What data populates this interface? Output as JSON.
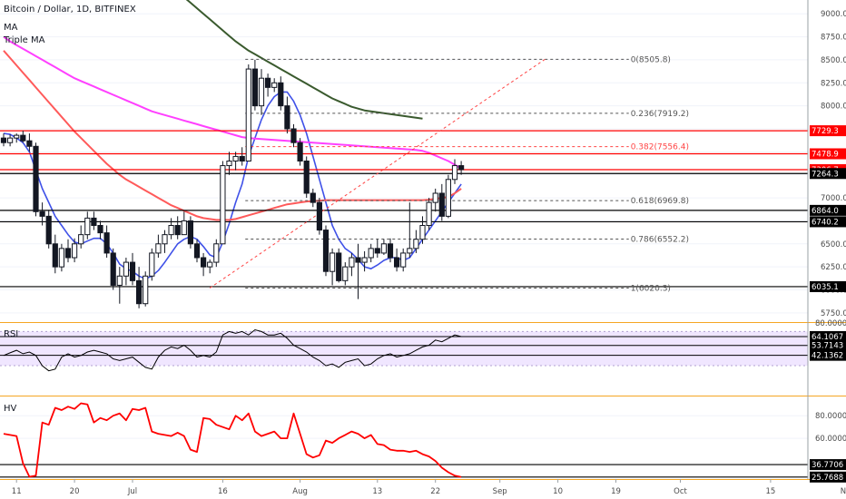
{
  "header": {
    "symbol": "Bitcoin / Dollar, 1D, BITFINEX",
    "studies": [
      "MA",
      "Triple MA"
    ]
  },
  "colors": {
    "up_candle": "#ffffff",
    "down_candle": "#131722",
    "rsi_band": "#e9dcff",
    "hv_line": "#ff0000",
    "ma_fast": "#3f51e8",
    "ma_mid": "#ff5a5a",
    "ma_pink": "#ff40ff",
    "ma_slow": "#3a5a2e",
    "hline_red": "#ff0000",
    "hline_black": "#000000",
    "fib_dash": "#555555",
    "trend_dash": "#ff4444"
  },
  "chart_data": [
    {
      "type": "candlestick",
      "title": "Bitcoin / Dollar, 1D, BITFINEX",
      "ylim": [
        5650,
        9150
      ],
      "y_ticks": [
        5750,
        6000,
        6250,
        6500,
        6750,
        7000,
        7250,
        7500,
        7750,
        8000,
        8250,
        8500,
        8750,
        9000
      ],
      "y_tick_labels": [
        "5750.0",
        "6000.0",
        "6250.0",
        "6500.0",
        "6750.0",
        "7000.0",
        "7250.0",
        "7500.0",
        "7750.0",
        "8000.0",
        "8250.0",
        "8500.0",
        "8750.0",
        "9000.0"
      ],
      "x_ticks": [
        "11",
        "20",
        "Jul",
        "16",
        "Aug",
        "13",
        "22",
        "Sep",
        "10",
        "19",
        "Oct",
        "15",
        "Nov"
      ],
      "x_tick_index": [
        2,
        11,
        20,
        34,
        46,
        58,
        67,
        77,
        86,
        95,
        105,
        119,
        131
      ],
      "ohlc": [
        [
          7650,
          7700,
          7560,
          7600
        ],
        [
          7600,
          7690,
          7560,
          7650
        ],
        [
          7650,
          7700,
          7600,
          7680
        ],
        [
          7680,
          7730,
          7600,
          7620
        ],
        [
          7620,
          7700,
          7500,
          7560
        ],
        [
          7560,
          7600,
          6800,
          6850
        ],
        [
          6850,
          6950,
          6700,
          6800
        ],
        [
          6800,
          6870,
          6450,
          6500
        ],
        [
          6500,
          6600,
          6180,
          6250
        ],
        [
          6250,
          6500,
          6200,
          6450
        ],
        [
          6450,
          6550,
          6300,
          6350
        ],
        [
          6350,
          6560,
          6300,
          6500
        ],
        [
          6500,
          6700,
          6450,
          6600
        ],
        [
          6600,
          6850,
          6550,
          6780
        ],
        [
          6780,
          6850,
          6650,
          6700
        ],
        [
          6700,
          6750,
          6550,
          6620
        ],
        [
          6620,
          6700,
          6350,
          6400
        ],
        [
          6400,
          6450,
          6000,
          6050
        ],
        [
          6050,
          6250,
          5850,
          6150
        ],
        [
          6150,
          6350,
          6050,
          6300
        ],
        [
          6300,
          6400,
          6050,
          6100
        ],
        [
          6100,
          6250,
          5800,
          5850
        ],
        [
          5850,
          6200,
          5820,
          6150
        ],
        [
          6150,
          6450,
          6100,
          6400
        ],
        [
          6400,
          6600,
          6350,
          6500
        ],
        [
          6500,
          6650,
          6400,
          6600
        ],
        [
          6600,
          6780,
          6550,
          6700
        ],
        [
          6700,
          6800,
          6550,
          6600
        ],
        [
          6600,
          6850,
          6600,
          6750
        ],
        [
          6750,
          6800,
          6450,
          6500
        ],
        [
          6500,
          6550,
          6300,
          6350
        ],
        [
          6350,
          6400,
          6150,
          6250
        ],
        [
          6250,
          6330,
          6180,
          6300
        ],
        [
          6300,
          6550,
          6250,
          6500
        ],
        [
          6500,
          7400,
          6500,
          7350
        ],
        [
          7350,
          7500,
          7250,
          7400
        ],
        [
          7400,
          7500,
          7300,
          7450
        ],
        [
          7450,
          7550,
          7350,
          7400
        ],
        [
          7400,
          8450,
          7400,
          8400
        ],
        [
          8400,
          8500,
          7950,
          8000
        ],
        [
          8000,
          8400,
          7900,
          8300
        ],
        [
          8300,
          8350,
          8100,
          8200
        ],
        [
          8200,
          8300,
          8150,
          8250
        ],
        [
          8250,
          8320,
          7950,
          8000
        ],
        [
          8000,
          8100,
          7700,
          7750
        ],
        [
          7750,
          7800,
          7550,
          7600
        ],
        [
          7600,
          7650,
          7350,
          7400
        ],
        [
          7400,
          7450,
          7000,
          7050
        ],
        [
          7050,
          7100,
          6900,
          6950
        ],
        [
          6950,
          7000,
          6600,
          6650
        ],
        [
          6650,
          6700,
          6150,
          6200
        ],
        [
          6200,
          6450,
          6050,
          6400
        ],
        [
          6400,
          6450,
          6080,
          6100
        ],
        [
          6100,
          6300,
          6050,
          6250
        ],
        [
          6250,
          6400,
          6150,
          6350
        ],
        [
          6350,
          6500,
          5900,
          6300
        ],
        [
          6300,
          6420,
          6200,
          6350
        ],
        [
          6350,
          6500,
          6300,
          6450
        ],
        [
          6450,
          6550,
          6350,
          6400
        ],
        [
          6400,
          6550,
          6380,
          6500
        ],
        [
          6500,
          6560,
          6300,
          6350
        ],
        [
          6350,
          6450,
          6200,
          6250
        ],
        [
          6250,
          6450,
          6200,
          6400
        ],
        [
          6400,
          6950,
          6350,
          6450
        ],
        [
          6450,
          6650,
          6400,
          6550
        ],
        [
          6550,
          6800,
          6500,
          6700
        ],
        [
          6700,
          7000,
          6650,
          6950
        ],
        [
          6950,
          7100,
          6850,
          7050
        ],
        [
          7050,
          7150,
          6750,
          6800
        ],
        [
          6800,
          7250,
          6780,
          7200
        ],
        [
          7200,
          7420,
          7150,
          7350
        ],
        [
          7350,
          7400,
          7250,
          7306.7
        ]
      ],
      "overlays": [
        {
          "name": "MA",
          "color": "#3f51e8",
          "values": [
            7700,
            7690,
            7650,
            7600,
            7500,
            7300,
            7100,
            6950,
            6800,
            6700,
            6600,
            6520,
            6500,
            6530,
            6560,
            6560,
            6500,
            6400,
            6280,
            6230,
            6200,
            6150,
            6120,
            6150,
            6210,
            6300,
            6400,
            6500,
            6550,
            6580,
            6550,
            6470,
            6380,
            6350,
            6520,
            6720,
            6950,
            7150,
            7450,
            7650,
            7850,
            8000,
            8100,
            8150,
            8150,
            8050,
            7900,
            7700,
            7450,
            7200,
            6950,
            6700,
            6550,
            6450,
            6400,
            6330,
            6250,
            6230,
            6270,
            6320,
            6350,
            6350,
            6320,
            6350,
            6450,
            6550,
            6650,
            6750,
            6850,
            6950,
            7050,
            7150
          ]
        },
        {
          "name": "Triple MA 1",
          "color": "#ff5a5a",
          "values": [
            8600,
            8520,
            8440,
            8360,
            8280,
            8200,
            8120,
            8040,
            7960,
            7880,
            7800,
            7720,
            7650,
            7580,
            7510,
            7440,
            7370,
            7310,
            7250,
            7200,
            7160,
            7120,
            7080,
            7040,
            7000,
            6960,
            6920,
            6890,
            6860,
            6830,
            6800,
            6780,
            6770,
            6760,
            6760,
            6760,
            6770,
            6790,
            6810,
            6830,
            6850,
            6870,
            6890,
            6910,
            6930,
            6940,
            6950,
            6960,
            6965,
            6970,
            6975,
            6975,
            6975,
            6975,
            6975,
            6975,
            6975,
            6975,
            6975,
            6975,
            6975,
            6975,
            6975,
            6975,
            6975,
            6975,
            6980,
            6990,
            7000,
            7010,
            7050,
            7100
          ]
        },
        {
          "name": "Triple MA 2",
          "color": "#ff40ff",
          "values": [
            8750,
            8700,
            8660,
            8620,
            8580,
            8540,
            8500,
            8460,
            8420,
            8380,
            8340,
            8300,
            8270,
            8240,
            8210,
            8180,
            8150,
            8120,
            8090,
            8060,
            8030,
            8000,
            7970,
            7940,
            7920,
            7900,
            7880,
            7860,
            7840,
            7820,
            7800,
            7780,
            7760,
            7740,
            7720,
            7700,
            7680,
            7660,
            7650,
            7645,
            7640,
            7635,
            7630,
            7625,
            7620,
            7615,
            7610,
            7605,
            7600,
            7595,
            7590,
            7585,
            7580,
            7575,
            7570,
            7565,
            7560,
            7555,
            7550,
            7545,
            7540,
            7535,
            7530,
            7525,
            7520,
            7510,
            7490,
            7460,
            7430,
            7400,
            7360,
            7320
          ]
        },
        {
          "name": "Triple MA 3",
          "color": "#3a5a2e",
          "values": [
            null,
            null,
            null,
            null,
            null,
            null,
            null,
            null,
            null,
            null,
            null,
            null,
            null,
            null,
            null,
            null,
            null,
            null,
            null,
            null,
            null,
            null,
            null,
            null,
            null,
            null,
            9300,
            9240,
            9180,
            9120,
            9060,
            9000,
            8940,
            8880,
            8820,
            8760,
            8700,
            8650,
            8600,
            8560,
            8520,
            8480,
            8440,
            8400,
            8360,
            8320,
            8280,
            8240,
            8200,
            8160,
            8120,
            8080,
            8050,
            8020,
            7990,
            7970,
            7950,
            7940,
            7930,
            7920,
            7910,
            7900,
            7890,
            7880,
            7870,
            7860,
            null,
            null,
            null,
            null,
            null,
            null
          ]
        }
      ],
      "horizontal_lines": [
        {
          "value": 7729.3,
          "label": "7729.3",
          "color": "#ff0000"
        },
        {
          "value": 7478.9,
          "label": "7478.9",
          "color": "#ff0000"
        },
        {
          "value": 7306.7,
          "label": "7306.7",
          "color": "#ff0000"
        },
        {
          "value": 7264.3,
          "label": "7264.3",
          "color": "#000000"
        },
        {
          "value": 6864.0,
          "label": "6864.0",
          "color": "#000000"
        },
        {
          "value": 6740.2,
          "label": "6740.2",
          "color": "#000000"
        },
        {
          "value": 6035.1,
          "label": "6035.1",
          "color": "#000000"
        }
      ],
      "fib_levels": [
        {
          "value": 8505.8,
          "label": "0(8505.8)",
          "color": "#555555"
        },
        {
          "value": 7919.2,
          "label": "0.236(7919.2)",
          "color": "#555555"
        },
        {
          "value": 7556.4,
          "label": "0.382(7556.4)",
          "color": "#ff4444"
        },
        {
          "value": 6969.8,
          "label": "0.618(6969.8)",
          "color": "#555555"
        },
        {
          "value": 6552.2,
          "label": "0.786(6552.2)",
          "color": "#555555"
        },
        {
          "value": 6020.3,
          "label": "1(6020.3)",
          "color": "#555555"
        }
      ],
      "trend_line": {
        "from": [
          32,
          6020.3
        ],
        "to": [
          84,
          8505.8
        ]
      }
    },
    {
      "type": "line",
      "title": "RSI",
      "ylim": [
        -5,
        80
      ],
      "y_ticks": [
        80
      ],
      "y_tick_labels": [
        "80.0000"
      ],
      "band": [
        30,
        70
      ],
      "levels": [
        {
          "value": 64.1067,
          "label": "64.1067"
        },
        {
          "value": 53.7143,
          "label": "53.7143"
        },
        {
          "value": 42.1362,
          "label": "42.1362"
        }
      ],
      "values": [
        42,
        45,
        48,
        44,
        46,
        42,
        30,
        24,
        26,
        40,
        44,
        40,
        42,
        46,
        48,
        46,
        44,
        38,
        36,
        38,
        40,
        34,
        28,
        26,
        40,
        48,
        52,
        50,
        54,
        48,
        40,
        42,
        40,
        46,
        66,
        70,
        68,
        70,
        66,
        72,
        70,
        66,
        66,
        68,
        62,
        54,
        50,
        46,
        40,
        36,
        30,
        32,
        28,
        34,
        36,
        38,
        30,
        32,
        38,
        42,
        44,
        40,
        42,
        44,
        48,
        52,
        54,
        60,
        58,
        62,
        66,
        64.1067
      ]
    },
    {
      "type": "line",
      "title": "HV",
      "ylim": [
        24,
        97
      ],
      "y_ticks": [
        60,
        80
      ],
      "y_tick_labels": [
        "60.0000",
        "80.0000"
      ],
      "levels": [
        {
          "value": 36.7706,
          "label": "36.7706"
        },
        {
          "value": 25.7688,
          "label": "25.7688"
        }
      ],
      "values": [
        64,
        63,
        62,
        38,
        26,
        27,
        74,
        72,
        87,
        85,
        88,
        86,
        91,
        90,
        74,
        78,
        76,
        80,
        82,
        76,
        86,
        85,
        87,
        66,
        64,
        63,
        62,
        65,
        62,
        50,
        48,
        78,
        77,
        72,
        70,
        68,
        80,
        76,
        82,
        66,
        62,
        64,
        66,
        60,
        60,
        82,
        64,
        46,
        43,
        45,
        58,
        56,
        60,
        63,
        66,
        64,
        60,
        63,
        55,
        54,
        50,
        49,
        49,
        48,
        49,
        46,
        44,
        40,
        34,
        30,
        27,
        25.7688
      ]
    }
  ]
}
